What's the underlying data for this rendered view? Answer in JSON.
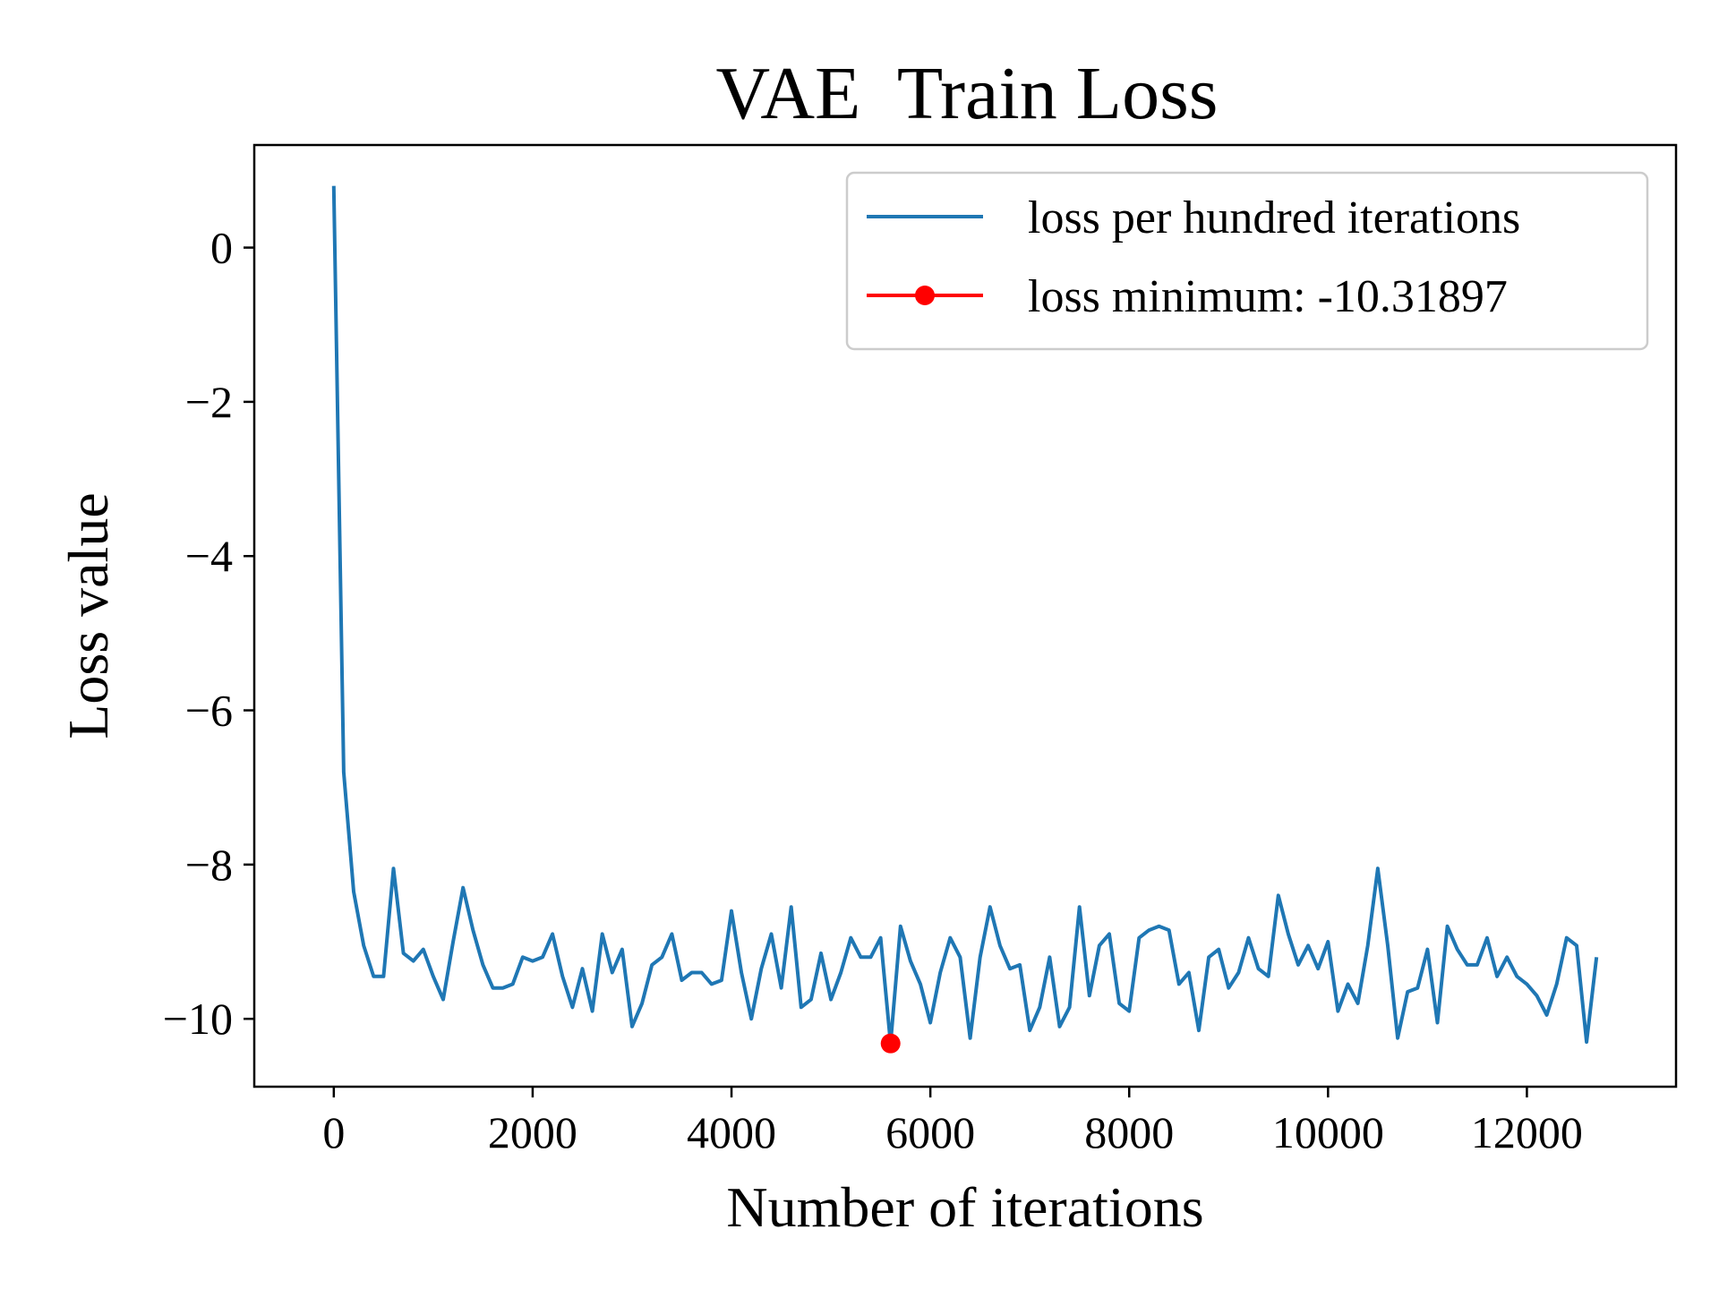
{
  "chart_data": {
    "type": "line",
    "title": "VAE  Train Loss",
    "xlabel": "Number of iterations",
    "ylabel": "Loss value",
    "xlim": [
      -800,
      13500
    ],
    "ylim": [
      -10.88,
      1.33
    ],
    "x_ticks": [
      0,
      2000,
      4000,
      6000,
      8000,
      10000,
      12000
    ],
    "x_tick_labels": [
      "0",
      "2000",
      "4000",
      "6000",
      "8000",
      "10000",
      "12000"
    ],
    "y_ticks": [
      0,
      -2,
      -4,
      -6,
      -8,
      -10
    ],
    "y_tick_labels": [
      "0",
      "−2",
      "−4",
      "−6",
      "−8",
      "−10"
    ],
    "grid": false,
    "legend_position": "top-right",
    "series": [
      {
        "name": "loss per hundred iterations",
        "color": "#1f77b4",
        "x": [
          0,
          100,
          200,
          300,
          400,
          500,
          600,
          700,
          800,
          900,
          1000,
          1100,
          1200,
          1300,
          1400,
          1500,
          1600,
          1700,
          1800,
          1900,
          2000,
          2100,
          2200,
          2300,
          2400,
          2500,
          2600,
          2700,
          2800,
          2900,
          3000,
          3100,
          3200,
          3300,
          3400,
          3500,
          3600,
          3700,
          3800,
          3900,
          4000,
          4100,
          4200,
          4300,
          4400,
          4500,
          4600,
          4700,
          4800,
          4900,
          5000,
          5100,
          5200,
          5300,
          5400,
          5500,
          5600,
          5700,
          5800,
          5900,
          6000,
          6100,
          6200,
          6300,
          6400,
          6500,
          6600,
          6700,
          6800,
          6900,
          7000,
          7100,
          7200,
          7300,
          7400,
          7500,
          7600,
          7700,
          7800,
          7900,
          8000,
          8100,
          8200,
          8300,
          8400,
          8500,
          8600,
          8700,
          8800,
          8900,
          9000,
          9100,
          9200,
          9300,
          9400,
          9500,
          9600,
          9700,
          9800,
          9900,
          10000,
          10100,
          10200,
          10300,
          10400,
          10500,
          10600,
          10700,
          10800,
          10900,
          11000,
          11100,
          11200,
          11300,
          11400,
          11500,
          11600,
          11700,
          11800,
          11900,
          12000,
          12100,
          12200,
          12300,
          12400,
          12500,
          12600,
          12700
        ],
        "values": [
          0.8,
          -6.8,
          -8.35,
          -9.05,
          -9.45,
          -9.45,
          -8.05,
          -9.15,
          -9.25,
          -9.1,
          -9.45,
          -9.75,
          -9.0,
          -8.3,
          -8.85,
          -9.3,
          -9.6,
          -9.6,
          -9.55,
          -9.2,
          -9.25,
          -9.2,
          -8.9,
          -9.45,
          -9.85,
          -9.35,
          -9.9,
          -8.9,
          -9.4,
          -9.1,
          -10.1,
          -9.8,
          -9.3,
          -9.2,
          -8.9,
          -9.5,
          -9.4,
          -9.4,
          -9.55,
          -9.5,
          -8.6,
          -9.4,
          -10.0,
          -9.35,
          -8.9,
          -9.6,
          -8.55,
          -9.85,
          -9.75,
          -9.15,
          -9.75,
          -9.4,
          -8.95,
          -9.2,
          -9.2,
          -8.95,
          -10.32,
          -8.8,
          -9.25,
          -9.55,
          -10.05,
          -9.4,
          -8.95,
          -9.2,
          -10.25,
          -9.2,
          -8.55,
          -9.05,
          -9.35,
          -9.3,
          -10.15,
          -9.85,
          -9.2,
          -10.1,
          -9.85,
          -8.55,
          -9.7,
          -9.05,
          -8.9,
          -9.8,
          -9.9,
          -8.95,
          -8.85,
          -8.8,
          -8.85,
          -9.55,
          -9.4,
          -10.15,
          -9.2,
          -9.1,
          -9.6,
          -9.4,
          -8.95,
          -9.35,
          -9.45,
          -8.4,
          -8.9,
          -9.3,
          -9.05,
          -9.35,
          -9.0,
          -9.9,
          -9.55,
          -9.8,
          -9.05,
          -8.05,
          -9.05,
          -10.25,
          -9.65,
          -9.6,
          -9.1,
          -10.05,
          -8.8,
          -9.1,
          -9.3,
          -9.3,
          -8.95,
          -9.45,
          -9.2,
          -9.45,
          -9.55,
          -9.7,
          -9.95,
          -9.55,
          -8.95,
          -9.05,
          -10.3,
          -9.2
        ]
      },
      {
        "name": "loss minimum: -10.31897",
        "color": "#ff0000",
        "marker": "circle",
        "x": [
          5600
        ],
        "values": [
          -10.31897
        ]
      }
    ]
  }
}
